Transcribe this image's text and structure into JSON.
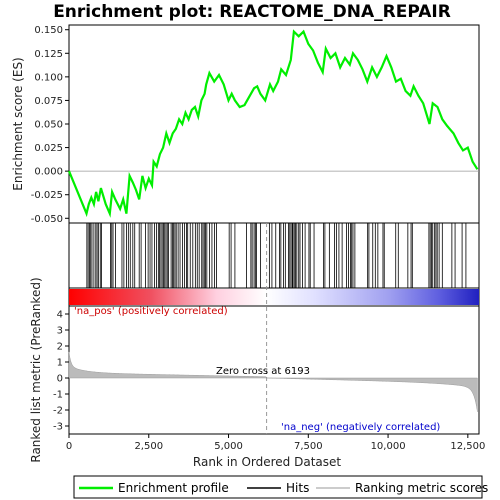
{
  "chart_data": {
    "type": "line",
    "title": "Enrichment plot: REACTOME_DNA_REPAIR",
    "xlabel": "Rank in Ordered Dataset",
    "ylabel_top": "Enrichment score (ES)",
    "ylabel_bottom": "Ranked list metric (PreRanked)",
    "x_range": [
      0,
      12850
    ],
    "es_ylim": [
      -0.055,
      0.155
    ],
    "metric_ylim": [
      -3.5,
      4.5
    ],
    "x_ticks": [
      0,
      2500,
      5000,
      7500,
      10000,
      12500
    ],
    "x_tick_labels": [
      "0",
      "2,500",
      "5,000",
      "7,500",
      "10,000",
      "12,500"
    ],
    "es_ticks": [
      -0.05,
      -0.025,
      0.0,
      0.025,
      0.05,
      0.075,
      0.1,
      0.125,
      0.15
    ],
    "es_tick_labels": [
      "-0.050",
      "-0.025",
      "0.000",
      "0.025",
      "0.050",
      "0.075",
      "0.100",
      "0.125",
      "0.150"
    ],
    "metric_ticks": [
      -3,
      -2,
      -1,
      0,
      1,
      2,
      3,
      4
    ],
    "metric_tick_labels": [
      "-3",
      "-2",
      "-1",
      "0",
      "1",
      "2",
      "3",
      "4"
    ],
    "zero_cross": 6193,
    "zero_cross_label": "Zero cross at 6193",
    "pos_label": "'na_pos' (positively correlated)",
    "neg_label": "'na_neg' (negatively correlated)",
    "series": [
      {
        "name": "Enrichment profile",
        "color": "#00ee00",
        "points": [
          [
            0,
            0.0
          ],
          [
            550,
            -0.045
          ],
          [
            620,
            -0.035
          ],
          [
            700,
            -0.028
          ],
          [
            780,
            -0.035
          ],
          [
            850,
            -0.022
          ],
          [
            920,
            -0.032
          ],
          [
            1000,
            -0.018
          ],
          [
            1150,
            -0.035
          ],
          [
            1280,
            -0.045
          ],
          [
            1350,
            -0.022
          ],
          [
            1450,
            -0.03
          ],
          [
            1600,
            -0.04
          ],
          [
            1700,
            -0.03
          ],
          [
            1800,
            -0.045
          ],
          [
            1900,
            -0.005
          ],
          [
            2000,
            -0.012
          ],
          [
            2100,
            -0.02
          ],
          [
            2200,
            -0.03
          ],
          [
            2300,
            -0.005
          ],
          [
            2400,
            -0.018
          ],
          [
            2500,
            -0.008
          ],
          [
            2600,
            -0.015
          ],
          [
            2650,
            0.01
          ],
          [
            2750,
            0.005
          ],
          [
            2850,
            0.018
          ],
          [
            2950,
            0.025
          ],
          [
            3050,
            0.04
          ],
          [
            3150,
            0.03
          ],
          [
            3250,
            0.04
          ],
          [
            3350,
            0.045
          ],
          [
            3450,
            0.055
          ],
          [
            3550,
            0.05
          ],
          [
            3650,
            0.062
          ],
          [
            3750,
            0.055
          ],
          [
            3850,
            0.065
          ],
          [
            3950,
            0.068
          ],
          [
            4050,
            0.058
          ],
          [
            4150,
            0.075
          ],
          [
            4250,
            0.082
          ],
          [
            4300,
            0.092
          ],
          [
            4400,
            0.104
          ],
          [
            4550,
            0.095
          ],
          [
            4700,
            0.102
          ],
          [
            4850,
            0.092
          ],
          [
            5000,
            0.075
          ],
          [
            5100,
            0.082
          ],
          [
            5200,
            0.075
          ],
          [
            5350,
            0.068
          ],
          [
            5500,
            0.07
          ],
          [
            5700,
            0.082
          ],
          [
            5800,
            0.088
          ],
          [
            5900,
            0.09
          ],
          [
            6000,
            0.082
          ],
          [
            6150,
            0.075
          ],
          [
            6300,
            0.092
          ],
          [
            6400,
            0.085
          ],
          [
            6550,
            0.095
          ],
          [
            6650,
            0.108
          ],
          [
            6800,
            0.102
          ],
          [
            6950,
            0.118
          ],
          [
            7050,
            0.148
          ],
          [
            7200,
            0.143
          ],
          [
            7350,
            0.148
          ],
          [
            7500,
            0.135
          ],
          [
            7650,
            0.128
          ],
          [
            7800,
            0.115
          ],
          [
            7950,
            0.105
          ],
          [
            8050,
            0.13
          ],
          [
            8200,
            0.12
          ],
          [
            8350,
            0.125
          ],
          [
            8500,
            0.11
          ],
          [
            8650,
            0.12
          ],
          [
            8800,
            0.113
          ],
          [
            8900,
            0.125
          ],
          [
            9050,
            0.118
          ],
          [
            9200,
            0.108
          ],
          [
            9350,
            0.095
          ],
          [
            9500,
            0.11
          ],
          [
            9650,
            0.1
          ],
          [
            9800,
            0.11
          ],
          [
            9950,
            0.122
          ],
          [
            10100,
            0.11
          ],
          [
            10250,
            0.095
          ],
          [
            10400,
            0.098
          ],
          [
            10550,
            0.085
          ],
          [
            10700,
            0.08
          ],
          [
            10800,
            0.09
          ],
          [
            10950,
            0.08
          ],
          [
            11100,
            0.072
          ],
          [
            11300,
            0.05
          ],
          [
            11400,
            0.072
          ],
          [
            11550,
            0.068
          ],
          [
            11700,
            0.055
          ],
          [
            11850,
            0.048
          ],
          [
            12050,
            0.04
          ],
          [
            12200,
            0.03
          ],
          [
            12350,
            0.022
          ],
          [
            12500,
            0.025
          ],
          [
            12650,
            0.01
          ],
          [
            12800,
            0.002
          ]
        ]
      }
    ],
    "hits": [
      560,
      600,
      640,
      680,
      720,
      780,
      840,
      880,
      920,
      980,
      1020,
      1300,
      1340,
      1380,
      1460,
      1660,
      1720,
      1800,
      1860,
      1920,
      2000,
      2060,
      2200,
      2260,
      2400,
      2480,
      2540,
      2600,
      2680,
      2740,
      2800,
      2840,
      2880,
      2920,
      2960,
      3000,
      3040,
      3080,
      3120,
      3200,
      3240,
      3280,
      3320,
      3360,
      3420,
      3480,
      3560,
      3620,
      3680,
      3720,
      3800,
      3880,
      3960,
      4020,
      4080,
      4160,
      4200,
      4240,
      4280,
      4320,
      4400,
      4480,
      4560,
      4620,
      5020,
      5080,
      5200,
      5560,
      5700,
      5740,
      5800,
      5840,
      5880,
      6000,
      6280,
      6360,
      6480,
      6600,
      6640,
      6720,
      6780,
      6880,
      6920,
      6960,
      7000,
      7020,
      7060,
      7100,
      7140,
      7200,
      7240,
      7320,
      7400,
      7520,
      7560,
      7680,
      7980,
      8020,
      8160,
      8320,
      8380,
      8460,
      8560,
      8700,
      8760,
      8820,
      8860,
      8900,
      8960,
      9360,
      9400,
      9520,
      9600,
      9680,
      9840,
      9880,
      10240,
      10320,
      10620,
      10720,
      10760,
      11280,
      11320,
      11360,
      11400,
      11460,
      11500,
      11540,
      11600,
      11700,
      12000,
      12100,
      12320,
      12440
    ]
  },
  "legend": {
    "items": [
      {
        "label": "Enrichment profile",
        "color": "#00ee00"
      },
      {
        "label": "Hits",
        "color": "#000000"
      },
      {
        "label": "Ranking metric scores",
        "color": "#bbbbbb"
      }
    ]
  }
}
